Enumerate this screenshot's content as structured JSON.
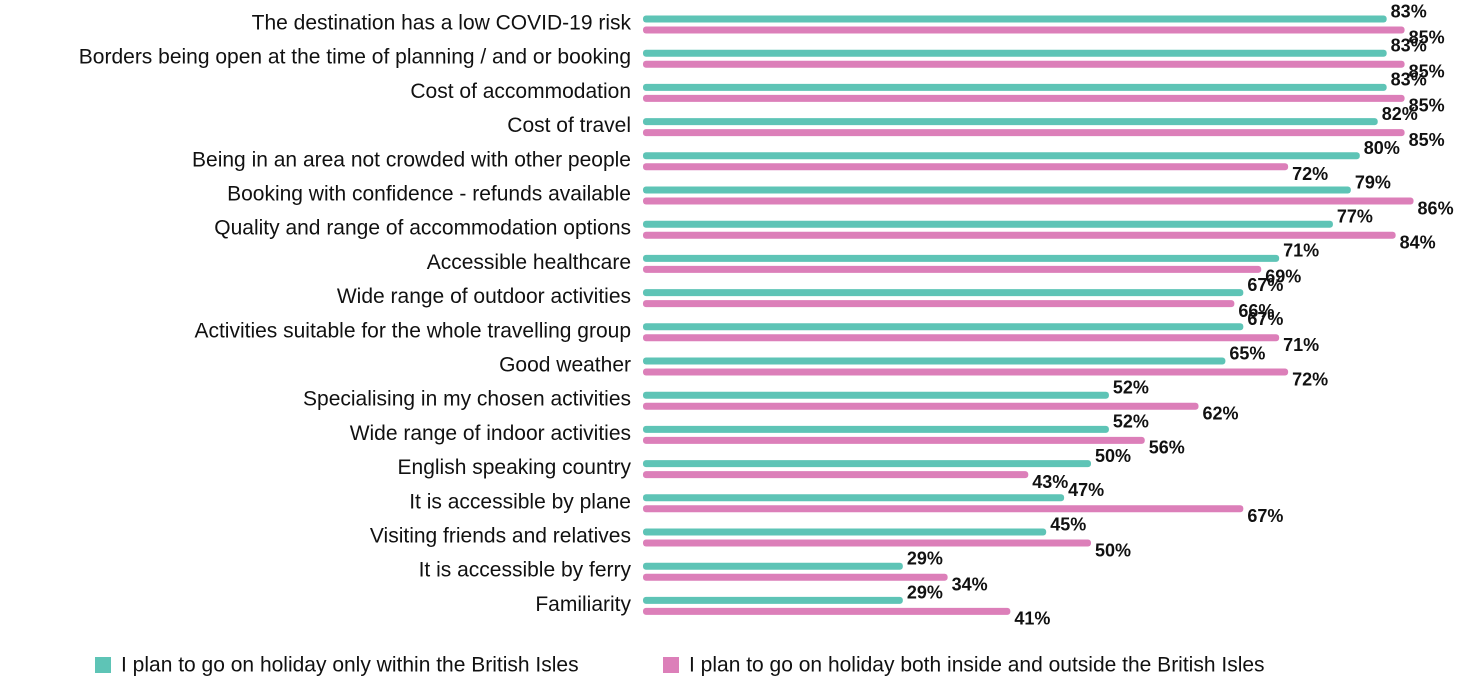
{
  "chart_data": {
    "type": "bar",
    "orientation": "horizontal",
    "categories": [
      "The destination has a low COVID-19 risk",
      "Borders being open at the time of planning / and or booking",
      "Cost of accommodation",
      "Cost of travel",
      "Being in an area not crowded with other people",
      "Booking with confidence - refunds available",
      "Quality and range of accommodation options",
      "Accessible healthcare",
      "Wide range of outdoor activities",
      "Activities suitable for the whole travelling group",
      "Good weather",
      "Specialising in my chosen activities",
      "Wide range of indoor activities",
      "English speaking country",
      "It is accessible by plane",
      "Visiting friends and relatives",
      "It is accessible by ferry",
      "Familiarity"
    ],
    "series": [
      {
        "name": "I plan to go on holiday only within the British Isles",
        "color": "#5ec4b6",
        "values": [
          83,
          83,
          83,
          82,
          80,
          79,
          77,
          71,
          67,
          67,
          65,
          52,
          52,
          50,
          47,
          45,
          29,
          29
        ],
        "value_labels": [
          "83%",
          "83%",
          "83%",
          "82%",
          "80%",
          "79%",
          "77%",
          "71%",
          "67%",
          "67%",
          "65%",
          "52%",
          "52%",
          "50%",
          "47%",
          "45%",
          "29%",
          "29%"
        ]
      },
      {
        "name": "I plan to go on holiday both inside and outside the British Isles",
        "color": "#dc7fb9",
        "values": [
          85,
          85,
          85,
          85,
          72,
          86,
          84,
          69,
          66,
          71,
          72,
          62,
          56,
          43,
          67,
          50,
          34,
          41
        ],
        "value_labels": [
          "85%",
          "85%",
          "85%",
          "85%",
          "72%",
          "86%",
          "84%",
          "69%",
          "66%",
          "71%",
          "72%",
          "62%",
          "56%",
          "43%",
          "67%",
          "50%",
          "34%",
          "41%"
        ]
      }
    ]
  }
}
